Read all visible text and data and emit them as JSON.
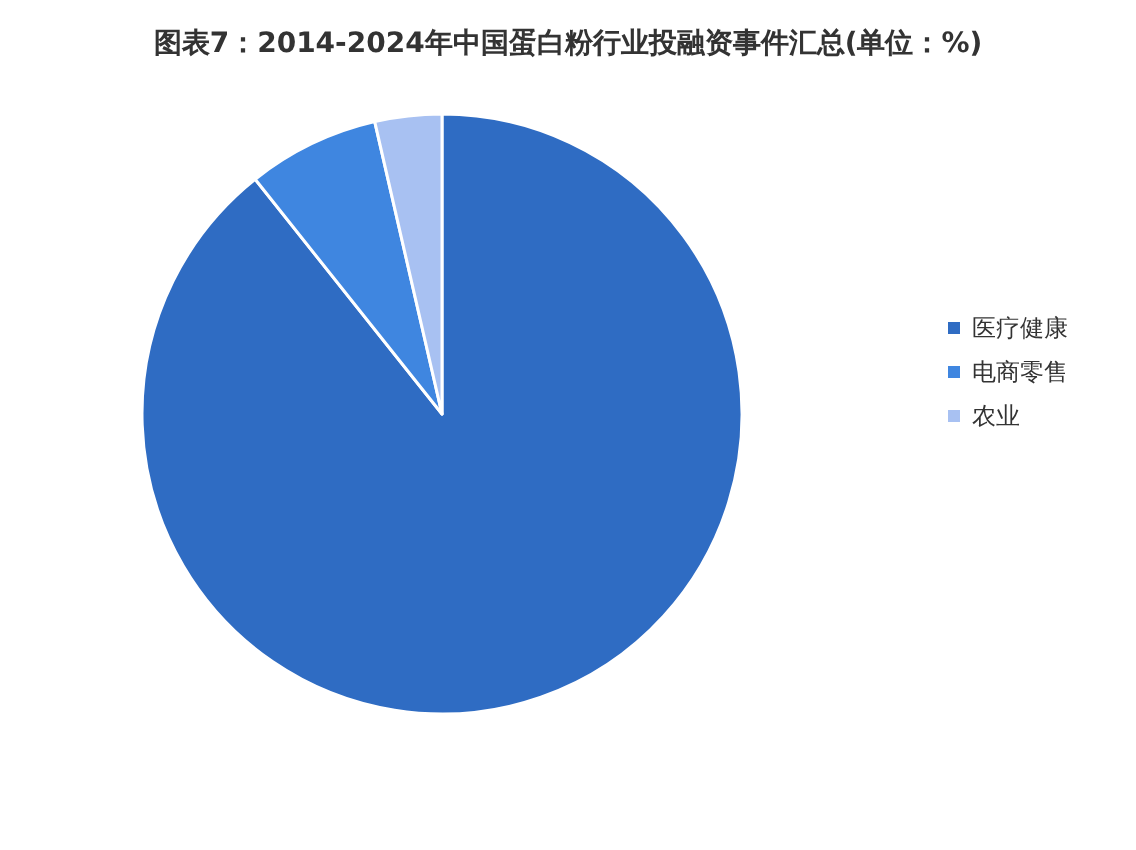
{
  "chart_data": {
    "type": "pie",
    "title": "图表7：2014-2024年中国蛋白粉行业投融资事件汇总(单位：%)",
    "categories": [
      "医疗健康",
      "电商零售",
      "农业"
    ],
    "values": [
      89.3,
      7.1,
      3.6
    ],
    "colors": [
      "#2f6cc3",
      "#3f86e0",
      "#a8c1f2"
    ],
    "legend": "right"
  }
}
